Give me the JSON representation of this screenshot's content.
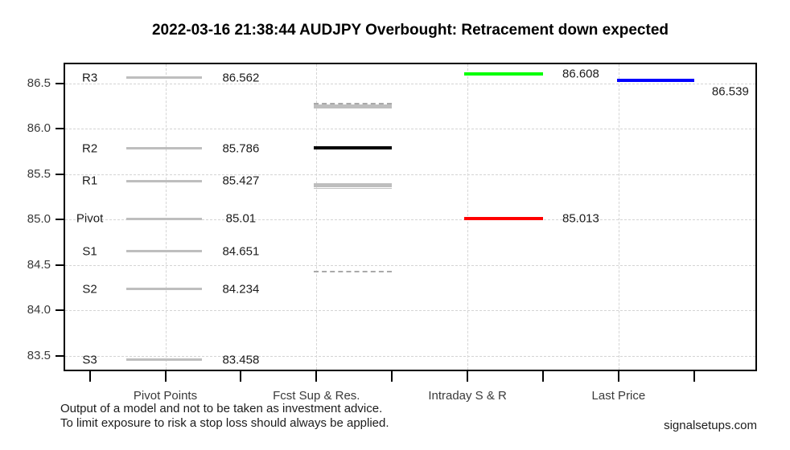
{
  "chart_data": {
    "type": "line",
    "description": "Horizontal price-level segments per category column",
    "title": "2022-03-16 21:38:44 AUDJPY Overbought: Retracement down expected",
    "ylim": [
      83.33,
      86.73
    ],
    "y_ticks": [
      86.5,
      86.0,
      85.5,
      85.0,
      84.5,
      84.0,
      83.5
    ],
    "y_tick_labels": [
      "86.5",
      "86.0",
      "85.5",
      "85.0",
      "84.5",
      "84.0",
      "83.5"
    ],
    "grid": "dashed-lightgray",
    "legend": "none",
    "columns": [
      {
        "label": "Pivot Points",
        "x": 1
      },
      {
        "label": "Fcst Sup & Res.",
        "x": 2
      },
      {
        "label": "Intraday S & R",
        "x": 3
      },
      {
        "label": "Last Price",
        "x": 4
      }
    ],
    "pivot_line_color": "#bebebe",
    "pivot_points": [
      {
        "name": "R3",
        "value": 86.562,
        "label": "86.562"
      },
      {
        "name": "R2",
        "value": 85.786,
        "label": "85.786"
      },
      {
        "name": "R1",
        "value": 85.427,
        "label": "85.427"
      },
      {
        "name": "Pivot",
        "value": 85.01,
        "label": "85.01"
      },
      {
        "name": "S1",
        "value": 84.651,
        "label": "84.651"
      },
      {
        "name": "S2",
        "value": 84.234,
        "label": "84.234"
      },
      {
        "name": "S3",
        "value": 83.458,
        "label": "83.458"
      }
    ],
    "fcst_sup_res": [
      {
        "name": "fcst-upper-resistance-solid",
        "value": 86.25,
        "style": "solid",
        "color": "#bebebe",
        "weight": 5
      },
      {
        "name": "fcst-upper-resistance-dashed",
        "value": 86.28,
        "style": "dashed",
        "color": "#a9a9a9",
        "weight": 2
      },
      {
        "name": "fcst-central-level",
        "value": 85.79,
        "style": "solid",
        "color": "#000000",
        "weight": 4
      },
      {
        "name": "fcst-support-thick",
        "value": 85.38,
        "style": "solid",
        "color": "#bebebe",
        "weight": 5
      },
      {
        "name": "fcst-support-thin",
        "value": 85.34,
        "style": "solid",
        "color": "#c3c3c3",
        "weight": 1
      },
      {
        "name": "fcst-lower-support-dashed",
        "value": 84.43,
        "style": "dashed",
        "color": "#a9a9a9",
        "weight": 2
      }
    ],
    "intraday_sr": [
      {
        "name": "intraday-resistance",
        "value": 86.608,
        "label": "86.608",
        "color": "#00ff00"
      },
      {
        "name": "intraday-support",
        "value": 85.013,
        "label": "85.013",
        "color": "#ff0000"
      }
    ],
    "last_price": {
      "name": "last-price",
      "value": 86.539,
      "label": "86.539",
      "color": "#0000ff"
    }
  },
  "footer": {
    "line1": "Output of a model and not to be taken as investment advice.",
    "line2": "To limit exposure to risk a stop loss should always be applied.",
    "brand": "signalsetups.com"
  }
}
